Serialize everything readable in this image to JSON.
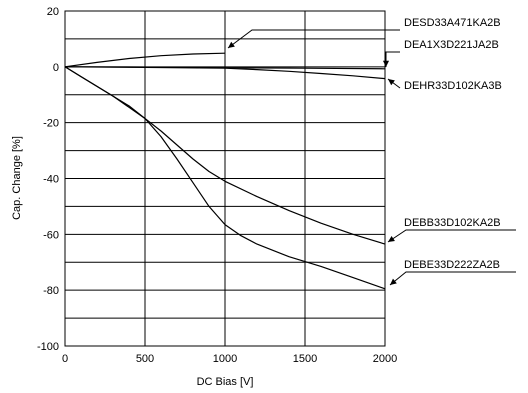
{
  "chart_data": {
    "type": "line",
    "xlabel": "DC Bias [V]",
    "ylabel": "Cap. Change [%]",
    "xlim": [
      0,
      2000
    ],
    "ylim": [
      -100,
      20
    ],
    "x_ticks": [
      "0",
      "500",
      "1000",
      "1500",
      "2000"
    ],
    "y_ticks": [
      "20",
      "0",
      "-20",
      "-40",
      "-60",
      "-80",
      "-100"
    ],
    "grid": true,
    "series": [
      {
        "name": "DESD33A471KA2B",
        "x": [
          0,
          200,
          400,
          600,
          800,
          1000
        ],
        "y": [
          0,
          1.6,
          3.0,
          4.0,
          4.6,
          4.9
        ]
      },
      {
        "name": "DEA1X3D221JA2B",
        "x": [
          0,
          500,
          1000,
          1500,
          2000
        ],
        "y": [
          0,
          -0.1,
          -0.3,
          -0.5,
          -0.7
        ]
      },
      {
        "name": "DEHR33D102KA3B",
        "x": [
          0,
          500,
          1000,
          1200,
          1400,
          1600,
          1800,
          2000
        ],
        "y": [
          0,
          -0.2,
          -0.5,
          -1.0,
          -1.6,
          -2.4,
          -3.2,
          -4.2
        ]
      },
      {
        "name": "DEBB33D102KA2B",
        "x": [
          0,
          100,
          200,
          300,
          400,
          500,
          600,
          700,
          800,
          900,
          1000,
          1200,
          1400,
          1600,
          1800,
          2000
        ],
        "y": [
          0,
          -3.5,
          -7.0,
          -10.5,
          -14.5,
          -18.5,
          -23.0,
          -28.0,
          -33.0,
          -37.5,
          -41.0,
          -46.5,
          -51.5,
          -56.0,
          -60.0,
          -63.5
        ]
      },
      {
        "name": "DEBE33D222ZA2B",
        "x": [
          0,
          100,
          200,
          300,
          400,
          500,
          600,
          700,
          800,
          900,
          1000,
          1100,
          1200,
          1400,
          1600,
          1800,
          2000
        ],
        "y": [
          0,
          -3.5,
          -7.0,
          -10.5,
          -14.0,
          -18.5,
          -25.0,
          -33.0,
          -41.5,
          -50.0,
          -56.5,
          -60.5,
          -63.5,
          -68.0,
          -71.5,
          -75.5,
          -79.5
        ]
      }
    ],
    "annotations": [
      {
        "series": "DESD33A471KA2B",
        "label": "DESD33A471KA2B"
      },
      {
        "series": "DEA1X3D221JA2B",
        "label": "DEA1X3D221JA2B"
      },
      {
        "series": "DEHR33D102KA3B",
        "label": "DEHR33D102KA3B"
      },
      {
        "series": "DEBB33D102KA2B",
        "label": "DEBB33D102KA2B"
      },
      {
        "series": "DEBE33D222ZA2B",
        "label": "DEBE33D222ZA2B"
      }
    ]
  }
}
